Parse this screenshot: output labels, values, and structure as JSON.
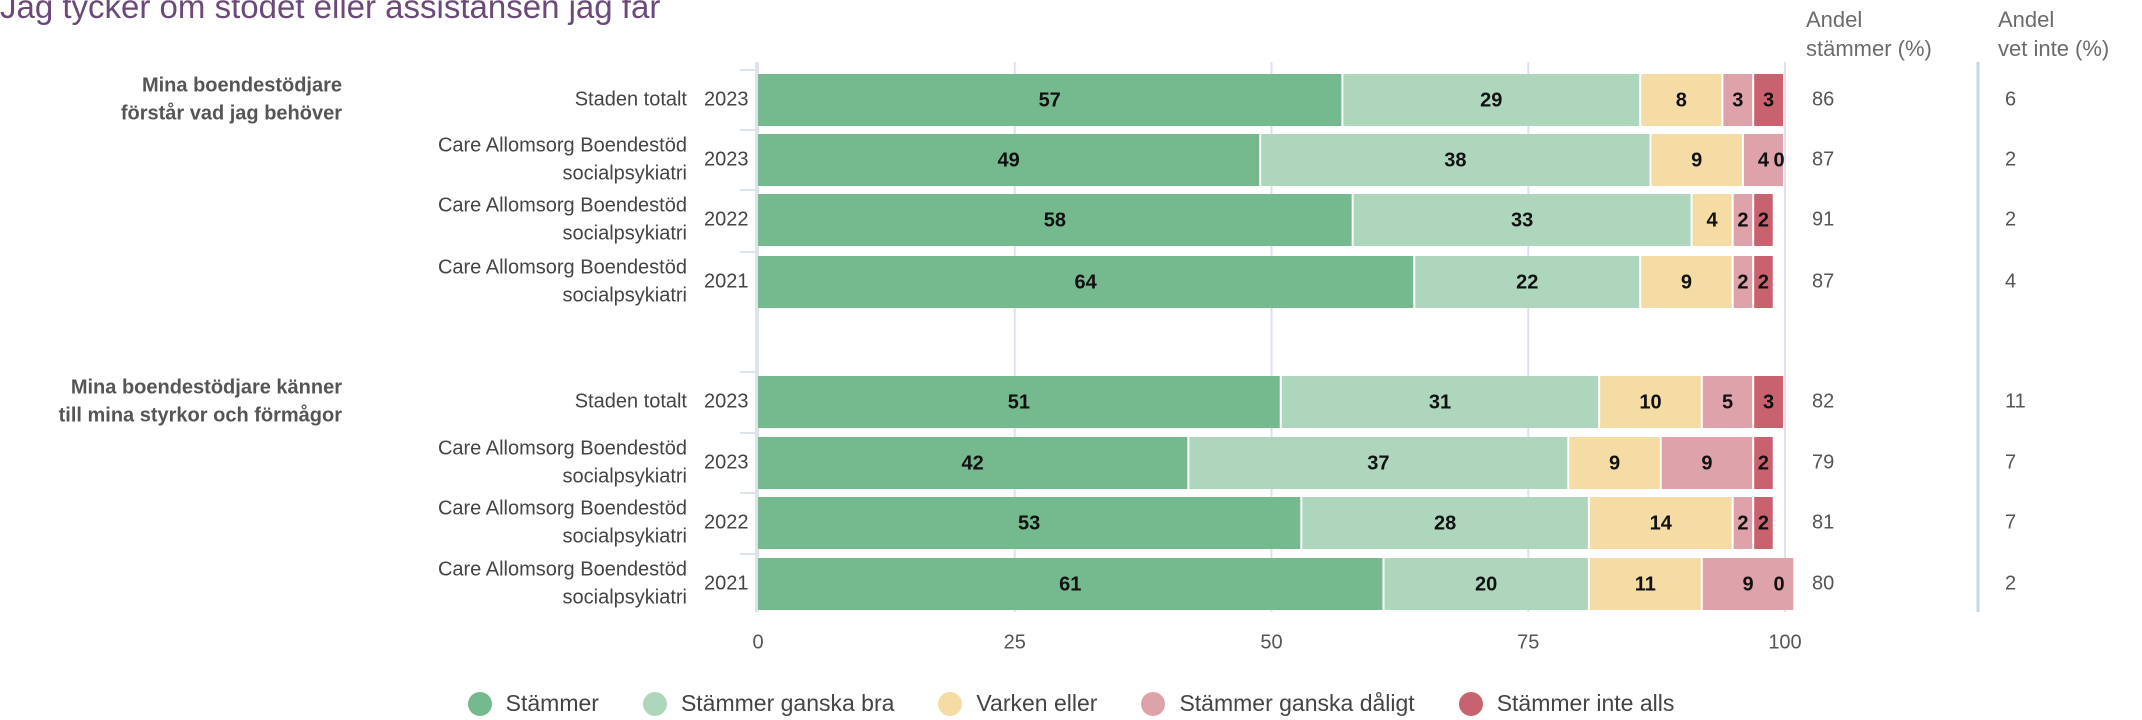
{
  "title": "Jag tycker om stödet eller assistansen jag får",
  "columns": {
    "andel_stammer": [
      "Andel",
      "stämmer (%)"
    ],
    "andel_vet_inte": [
      "Andel",
      "vet inte (%)"
    ]
  },
  "legend": [
    {
      "name": "Stämmer",
      "color": "#75b98f"
    },
    {
      "name": "Stämmer ganska bra",
      "color": "#aed6bd"
    },
    {
      "name": "Varken eller",
      "color": "#f5dca5"
    },
    {
      "name": "Stämmer ganska dåligt",
      "color": "#dea2ab"
    },
    {
      "name": "Stämmer inte alls",
      "color": "#c8626e"
    }
  ],
  "chart_data": {
    "type": "bar",
    "orientation": "horizontal",
    "stacked": true,
    "xlim": [
      0,
      100
    ],
    "xticks": [
      0,
      25,
      50,
      75,
      100
    ],
    "grid": true,
    "legend_position": "bottom",
    "series_names": [
      "Stämmer",
      "Stämmer ganska bra",
      "Varken eller",
      "Stämmer ganska dåligt",
      "Stämmer inte alls"
    ],
    "groups": [
      {
        "question": [
          "Mina boendestödjare",
          "förstår vad jag behöver"
        ],
        "rows": [
          {
            "label": [
              "Staden totalt"
            ],
            "year": "2023",
            "values": [
              57,
              29,
              8,
              3,
              3
            ],
            "andel_stammer": "86",
            "vet_inte": "6"
          },
          {
            "label": [
              "Care Allomsorg Boendestöd",
              "socialpsykiatri"
            ],
            "year": "2023",
            "values": [
              49,
              38,
              9,
              4,
              0
            ],
            "andel_stammer": "87",
            "vet_inte": "2"
          },
          {
            "label": [
              "Care Allomsorg Boendestöd",
              "socialpsykiatri"
            ],
            "year": "2022",
            "values": [
              58,
              33,
              4,
              2,
              2
            ],
            "andel_stammer": "91",
            "vet_inte": "2"
          },
          {
            "label": [
              "Care Allomsorg Boendestöd",
              "socialpsykiatri"
            ],
            "year": "2021",
            "values": [
              64,
              22,
              9,
              2,
              2
            ],
            "andel_stammer": "87",
            "vet_inte": "4"
          }
        ]
      },
      {
        "question": [
          "Mina boendestödjare känner",
          "till mina styrkor och förmågor"
        ],
        "rows": [
          {
            "label": [
              "Staden totalt"
            ],
            "year": "2023",
            "values": [
              51,
              31,
              10,
              5,
              3
            ],
            "andel_stammer": "82",
            "vet_inte": "11"
          },
          {
            "label": [
              "Care Allomsorg Boendestöd",
              "socialpsykiatri"
            ],
            "year": "2023",
            "values": [
              42,
              37,
              9,
              9,
              2
            ],
            "andel_stammer": "79",
            "vet_inte": "7"
          },
          {
            "label": [
              "Care Allomsorg Boendestöd",
              "socialpsykiatri"
            ],
            "year": "2022",
            "values": [
              53,
              28,
              14,
              2,
              2
            ],
            "andel_stammer": "81",
            "vet_inte": "7"
          },
          {
            "label": [
              "Care Allomsorg Boendestöd",
              "socialpsykiatri"
            ],
            "year": "2021",
            "values": [
              61,
              20,
              11,
              9,
              0
            ],
            "andel_stammer": "80",
            "vet_inte": "2"
          }
        ]
      }
    ]
  }
}
